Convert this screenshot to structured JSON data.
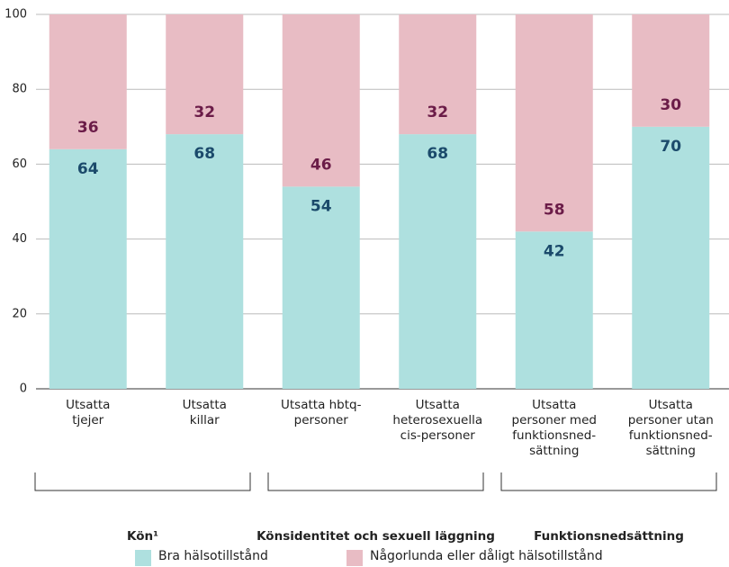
{
  "chart_data": {
    "type": "stacked_bar",
    "categories": [
      "Utsatta\ntjejer",
      "Utsatta\nkillar",
      "Utsatta hbtq-\npersoner",
      "Utsatta\nheterosexuella\ncis-personer",
      "Utsatta\npersoner med\nfunktionsned-\nsättning",
      "Utsatta\npersoner utan\nfunktionsned-\nsättning"
    ],
    "series": [
      {
        "name": "Bra hälsotillstånd",
        "color": "#aee0df",
        "label_color": "#1b4a6b",
        "values": [
          64,
          68,
          54,
          68,
          42,
          70
        ]
      },
      {
        "name": "Någorlunda eller dåligt hälsotillstånd",
        "color": "#e8bcc4",
        "label_color": "#6b1c48",
        "values": [
          36,
          32,
          46,
          32,
          58,
          30
        ]
      }
    ],
    "groups": [
      "Kön¹",
      "Könsidentitet och sexuell läggning",
      "Funktionsnedsättning"
    ],
    "ylim": [
      0,
      100
    ],
    "yticks": [
      0,
      20,
      40,
      60,
      80,
      100
    ],
    "grid": true,
    "legend": "bottom"
  }
}
